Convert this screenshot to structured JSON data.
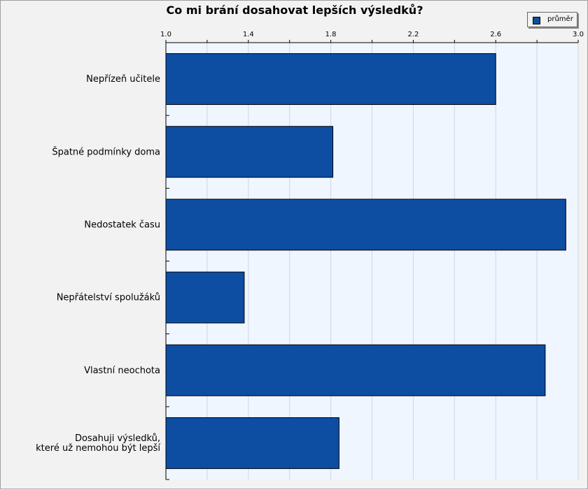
{
  "chart_data": {
    "type": "bar",
    "orientation": "horizontal",
    "title": "Co mi brání dosahovat lepších výsledků?",
    "categories": [
      [
        "Nepřízeň učitele"
      ],
      [
        "Špatné podmínky doma"
      ],
      [
        "Nedostatek času"
      ],
      [
        "Nepřátelství spolužáků"
      ],
      [
        "Vlastní neochota"
      ],
      [
        "Dosahuji výsledků,",
        "které už nemohou být lepší"
      ]
    ],
    "series": [
      {
        "name": "průměr",
        "values": [
          2.6,
          1.81,
          2.94,
          1.38,
          2.84,
          1.84
        ]
      }
    ],
    "xlim": [
      1.0,
      3.0
    ],
    "ticks": [
      "1.0",
      "1.4",
      "1.8",
      "2.2",
      "2.6",
      "3.0"
    ],
    "axis_position": "top",
    "grid": true,
    "legend_position": "top-right",
    "bar_color": "#0d4ea3",
    "plot_background": "#f0f6ff"
  }
}
